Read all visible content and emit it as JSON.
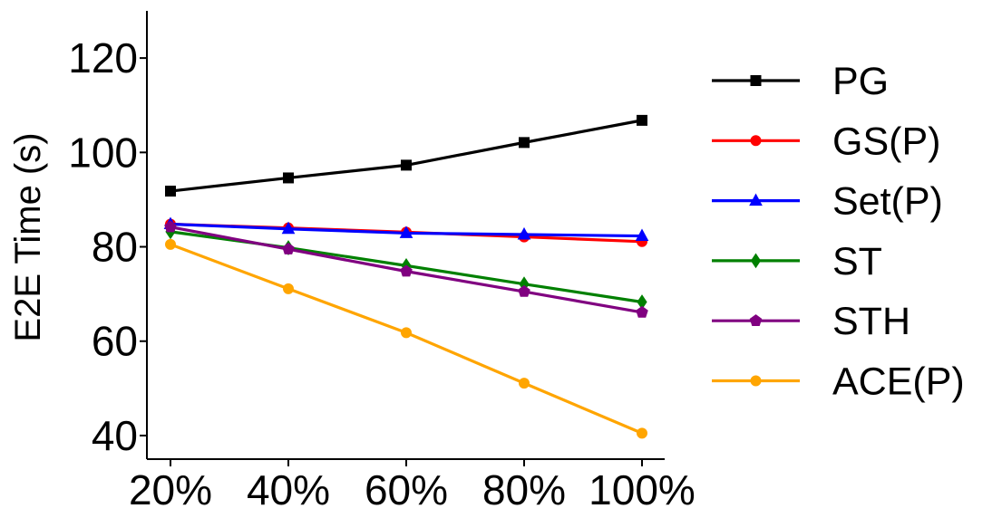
{
  "chart_data": {
    "type": "line",
    "title": "",
    "xlabel": "",
    "ylabel": "E2E Time (s)",
    "categories": [
      "20%",
      "40%",
      "60%",
      "80%",
      "100%"
    ],
    "ylim": [
      35,
      130
    ],
    "yticks": [
      "40",
      "60",
      "80",
      "100",
      "120"
    ],
    "grid": false,
    "legend_position": "right",
    "series": [
      {
        "name": "PG",
        "color": "#000000",
        "marker": "square",
        "values": [
          91.8,
          94.6,
          97.3,
          102.1,
          106.8
        ]
      },
      {
        "name": "GS(P)",
        "color": "#ff0000",
        "marker": "circle",
        "values": [
          84.8,
          84.0,
          83.1,
          82.1,
          81.1
        ]
      },
      {
        "name": "Set(P)",
        "color": "#0000ff",
        "marker": "triangle",
        "values": [
          84.8,
          83.8,
          82.9,
          82.6,
          82.3
        ]
      },
      {
        "name": "ST",
        "color": "#008000",
        "marker": "diamond",
        "values": [
          83.2,
          79.8,
          76.0,
          72.1,
          68.3
        ]
      },
      {
        "name": "STH",
        "color": "#800080",
        "marker": "pentagon",
        "values": [
          84.2,
          79.5,
          74.8,
          70.5,
          66.1
        ]
      },
      {
        "name": "ACE(P)",
        "color": "#ffa500",
        "marker": "circle",
        "values": [
          80.5,
          71.1,
          61.8,
          51.1,
          40.5
        ]
      }
    ]
  }
}
